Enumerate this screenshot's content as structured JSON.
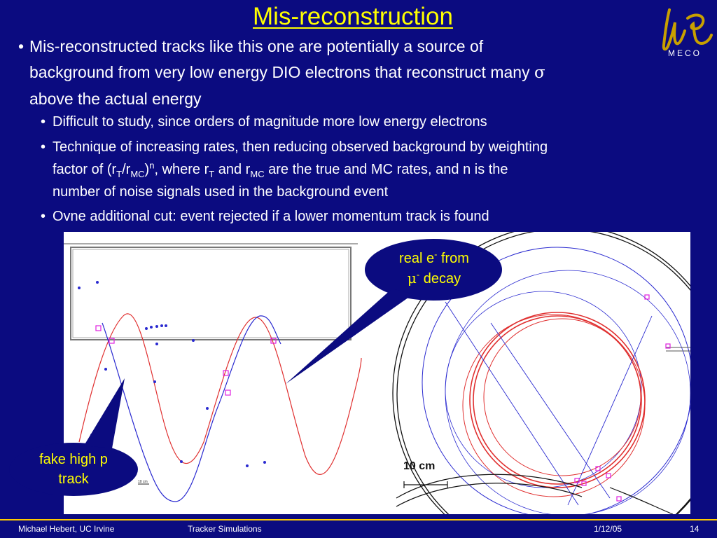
{
  "slide": {
    "title": "Mis-reconstruction",
    "logo_text": "MECO"
  },
  "bullets": {
    "main": {
      "text_a": "Mis-reconstructed tracks like this one are potentially a source of",
      "text_b": "background from very low energy DIO electrons that reconstruct many",
      "sigma": "σ",
      "text_c": "above the actual energy"
    },
    "sub1": "Difficult to study, since orders of magnitude more low energy electrons",
    "sub2": {
      "line1": "Technique of increasing rates, then reducing observed background by weighting",
      "l2_a": "factor of (r",
      "l2_T": "T",
      "l2_slash": "/r",
      "l2_MC": "MC",
      "l2_close": ")",
      "l2_n": "n",
      "l2_b": ", where r",
      "l2_T2": "T",
      "l2_c": " and r",
      "l2_MC2": "MC",
      "l2_d": " are the true and MC rates, and n is the",
      "line3": "number of noise signals used in the background event"
    },
    "sub3": "Ovne additional cut: event rejected if a lower momentum track is found"
  },
  "figure": {
    "scale_label": "10 cm",
    "small_scale_label": "10 cm"
  },
  "callouts": {
    "real": {
      "line1_a": "real e",
      "line1_sup": "-",
      "line1_b": " from",
      "line2_mu": "μ",
      "line2_sup": "-",
      "line2_b": "  decay"
    },
    "fake": {
      "line1": "fake high p",
      "line2": "track"
    }
  },
  "footer": {
    "author": "Michael Hebert, UC Irvine",
    "topic": "Tracker Simulations",
    "date": "1/12/05",
    "page": "14"
  },
  "colors": {
    "background": "#0b0b80",
    "title": "#ffff00",
    "callout_fill": "#0b0b80",
    "track_red": "#e03030",
    "track_blue": "#2a2ad0",
    "footer_line": "#ffcc00"
  }
}
